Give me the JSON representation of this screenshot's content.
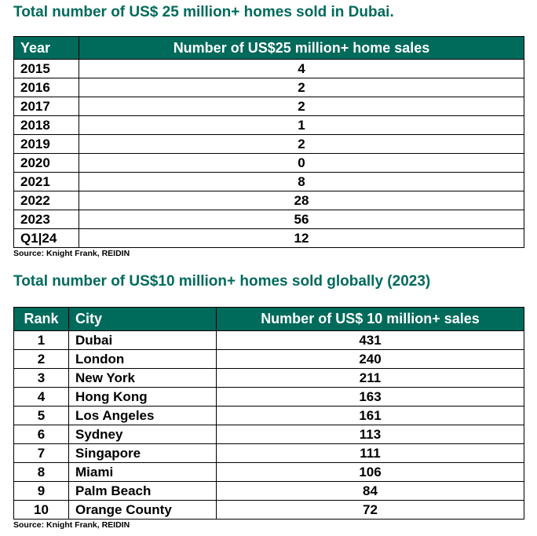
{
  "table1": {
    "title": "Total number of US$ 25 million+ homes sold in Dubai.",
    "headers": [
      "Year",
      "Number of US$25 million+ home sales"
    ],
    "rows": [
      [
        "2015",
        "4"
      ],
      [
        "2016",
        "2"
      ],
      [
        "2017",
        "2"
      ],
      [
        "2018",
        "1"
      ],
      [
        "2019",
        "2"
      ],
      [
        "2020",
        "0"
      ],
      [
        "2021",
        "8"
      ],
      [
        "2022",
        "28"
      ],
      [
        "2023",
        "56"
      ],
      [
        "Q1|24",
        "12"
      ]
    ],
    "source": "Source: Knight Frank, REIDIN"
  },
  "table2": {
    "title": "Total number of US$10 million+ homes sold globally (2023)",
    "headers": [
      "Rank",
      "City",
      "Number of US$ 10 million+ sales"
    ],
    "rows": [
      [
        "1",
        "Dubai",
        "431"
      ],
      [
        "2",
        "London",
        "240"
      ],
      [
        "3",
        "New York",
        "211"
      ],
      [
        "4",
        "Hong Kong",
        "163"
      ],
      [
        "5",
        "Los Angeles",
        "161"
      ],
      [
        "6",
        "Sydney",
        "113"
      ],
      [
        "7",
        "Singapore",
        "111"
      ],
      [
        "8",
        "Miami",
        "106"
      ],
      [
        "9",
        "Palm Beach",
        "84"
      ],
      [
        "10",
        "Orange County",
        "72"
      ]
    ],
    "source": "Source: Knight Frank, REIDIN"
  },
  "colors": {
    "accent": "#006a5b",
    "header_text": "#ffffff",
    "border": "#000000"
  }
}
